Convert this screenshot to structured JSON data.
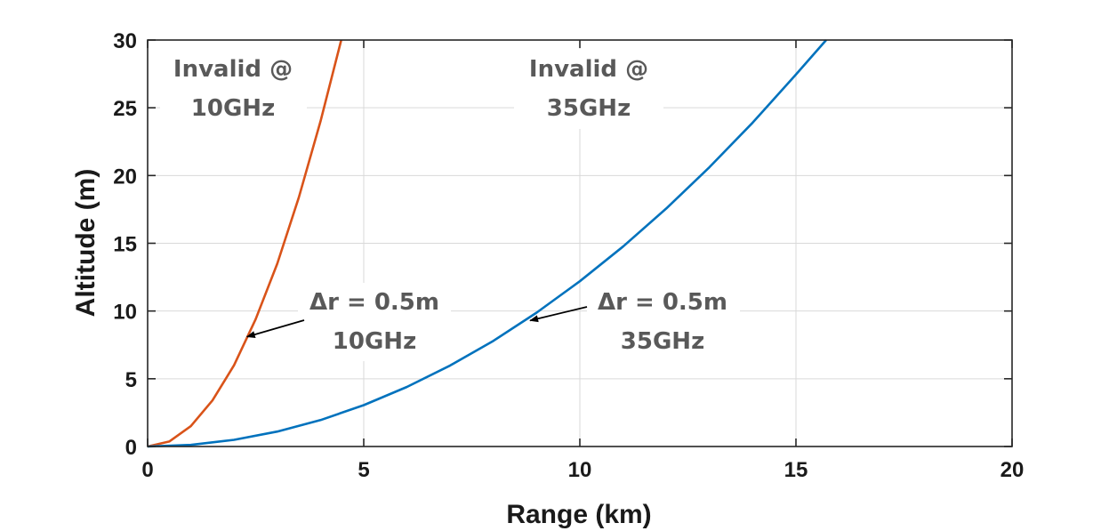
{
  "chart_data": {
    "type": "line",
    "xlabel": "Range (km)",
    "ylabel": "Altitude (m)",
    "xlim": [
      0,
      20
    ],
    "ylim": [
      0,
      30
    ],
    "xticks": [
      "0",
      "5",
      "10",
      "15",
      "20"
    ],
    "yticks": [
      "0",
      "5",
      "10",
      "15",
      "20",
      "25",
      "30"
    ],
    "grid": true,
    "series": [
      {
        "color": "#d95319",
        "x": [
          0,
          0.5,
          1,
          1.5,
          2,
          2.5,
          3,
          3.5,
          4,
          4.48
        ],
        "y": [
          0,
          0.37,
          1.5,
          3.4,
          6.0,
          9.4,
          13.5,
          18.4,
          24.0,
          30.0
        ]
      },
      {
        "color": "#0072bd",
        "x": [
          0,
          1,
          2,
          3,
          4,
          5,
          6,
          7,
          8,
          9,
          10,
          11,
          12,
          13,
          14,
          15,
          15.7
        ],
        "y": [
          0,
          0.12,
          0.49,
          1.1,
          1.95,
          3.05,
          4.4,
          5.98,
          7.8,
          9.88,
          12.2,
          14.76,
          17.57,
          20.62,
          23.91,
          27.45,
          30.0
        ]
      }
    ],
    "annotations": [
      {
        "id": "invalid-10",
        "lines": [
          "Invalid @",
          "10GHz"
        ]
      },
      {
        "id": "invalid-35",
        "lines": [
          "Invalid @",
          "35GHz"
        ]
      },
      {
        "id": "dr-10",
        "lines": [
          "Δr = 0.5m",
          "10GHz"
        ],
        "arrow_to": [
          2.3,
          8.1
        ]
      },
      {
        "id": "dr-35",
        "lines": [
          "Δr = 0.5m",
          "35GHz"
        ],
        "arrow_to": [
          8.85,
          9.3
        ]
      }
    ]
  }
}
